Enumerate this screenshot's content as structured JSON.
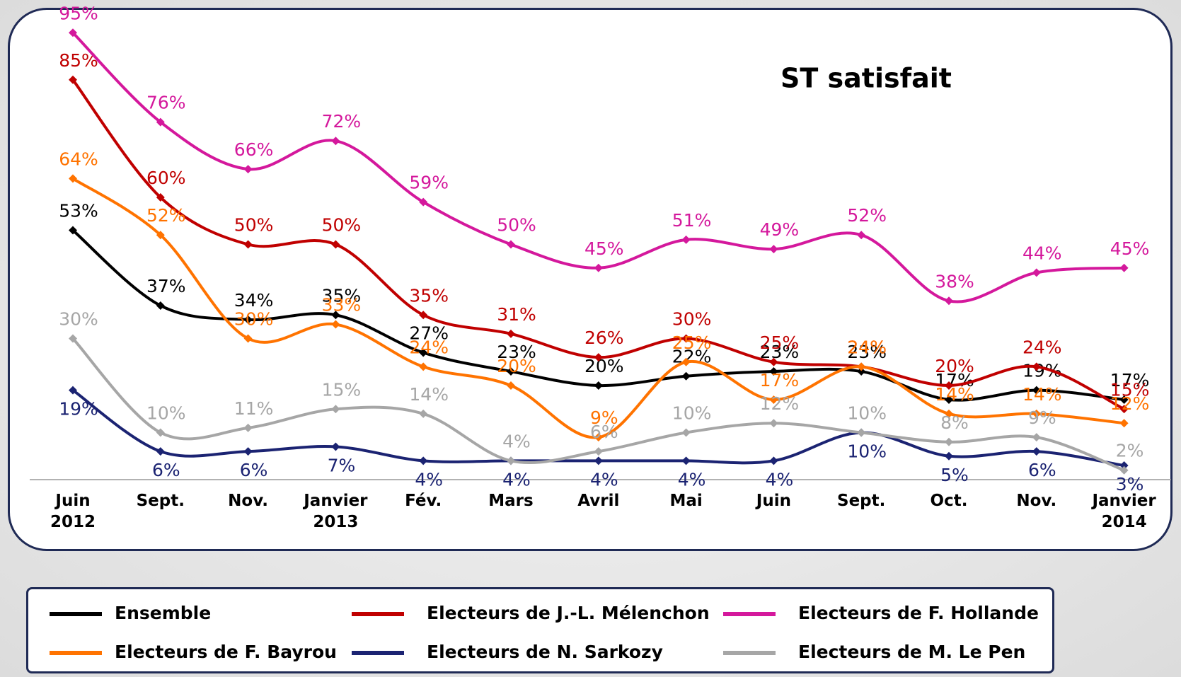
{
  "chart_data": {
    "type": "line",
    "title": "ST satisfait",
    "categories": [
      "Juin 2012",
      "Sept.",
      "Nov.",
      "Janvier 2013",
      "Fév.",
      "Mars",
      "Avril",
      "Mai",
      "Juin",
      "Sept.",
      "Oct.",
      "Nov.",
      "Janvier 2014"
    ],
    "ylim": [
      0,
      100
    ],
    "series": [
      {
        "name": "Ensemble",
        "color": "#000000",
        "values": [
          53,
          37,
          34,
          35,
          27,
          23,
          20,
          22,
          23,
          23,
          17,
          19,
          17
        ],
        "value_labels": [
          "53%",
          "37%",
          "34%",
          "35%",
          "27%",
          "23%",
          "20%",
          "22%",
          "23%",
          "23%",
          "17%",
          "19%",
          "17%"
        ]
      },
      {
        "name": "Electeurs de J.-L. Mélenchon",
        "color": "#c00000",
        "values": [
          85,
          60,
          50,
          50,
          35,
          31,
          26,
          30,
          25,
          24,
          20,
          24,
          15
        ],
        "value_labels": [
          "85%",
          "60%",
          "50%",
          "50%",
          "35%",
          "31%",
          "26%",
          "30%",
          "25%",
          "24%",
          "20%",
          "24%",
          "15%"
        ]
      },
      {
        "name": "Electeurs de F. Hollande",
        "color": "#d4189c",
        "values": [
          95,
          76,
          66,
          72,
          59,
          50,
          45,
          51,
          49,
          52,
          38,
          44,
          45
        ],
        "value_labels": [
          "95%",
          "76%",
          "66%",
          "72%",
          "59%",
          "50%",
          "45%",
          "51%",
          "49%",
          "52%",
          "38%",
          "44%",
          "45%"
        ]
      },
      {
        "name": "Electeurs de F. Bayrou",
        "color": "#ff7300",
        "values": [
          64,
          52,
          30,
          33,
          24,
          20,
          9,
          25,
          17,
          24,
          14,
          14,
          12
        ],
        "value_labels": [
          "64%",
          "52%",
          "30%",
          "33%",
          "24%",
          "20%",
          "9%",
          "25%",
          "17%",
          "24%",
          "14%",
          "14%",
          "12%"
        ]
      },
      {
        "name": "Electeurs de N. Sarkozy",
        "color": "#1b2372",
        "values": [
          19,
          6,
          6,
          7,
          4,
          4,
          4,
          4,
          4,
          10,
          5,
          6,
          3
        ],
        "value_labels": [
          "19%",
          "6%",
          "6%",
          "7%",
          "4%",
          "4%",
          "4%",
          "4%",
          "4%",
          "10%",
          "5%",
          "6%",
          "3%"
        ]
      },
      {
        "name": "Electeurs de M. Le Pen",
        "color": "#a6a6a6",
        "values": [
          30,
          10,
          11,
          15,
          14,
          4,
          6,
          10,
          12,
          10,
          8,
          9,
          2
        ],
        "value_labels": [
          "30%",
          "10%",
          "11%",
          "15%",
          "14%",
          "4%",
          "6%",
          "10%",
          "12%",
          "10%",
          "8%",
          "9%",
          "2%"
        ]
      }
    ]
  }
}
